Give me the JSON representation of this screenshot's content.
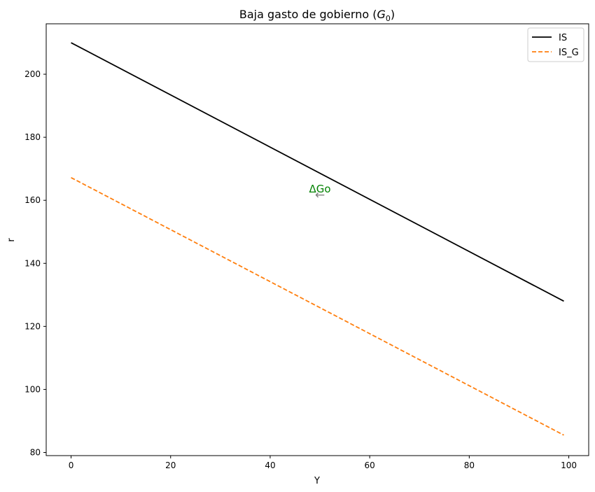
{
  "chart_data": {
    "type": "line",
    "title": "Baja gasto de gobierno ",
    "title_math_base": "G",
    "title_math_sub": "0",
    "xlabel": "Y",
    "ylabel": "r",
    "xlim": [
      -5,
      104
    ],
    "ylim": [
      79,
      216
    ],
    "x_ticks": [
      0,
      20,
      40,
      60,
      80,
      100
    ],
    "y_ticks": [
      80,
      100,
      120,
      140,
      160,
      180,
      200
    ],
    "grid": false,
    "legend_position": "top-right",
    "series": [
      {
        "name": "IS",
        "x_start": 0,
        "x_end": 99,
        "y_start": 210,
        "y_end": 128,
        "color": "#000000",
        "style": "solid"
      },
      {
        "name": "IS_G",
        "x_start": 0,
        "x_end": 99,
        "y_start": 167.2,
        "y_end": 85.5,
        "color": "#ff7f0e",
        "style": "dashed"
      }
    ],
    "annotations": [
      {
        "text": "ΔGo",
        "x": 50,
        "y": 162.5,
        "color": "#008000"
      },
      {
        "text": "←",
        "x": 50,
        "y": 160.5,
        "color": "#808080"
      }
    ]
  }
}
